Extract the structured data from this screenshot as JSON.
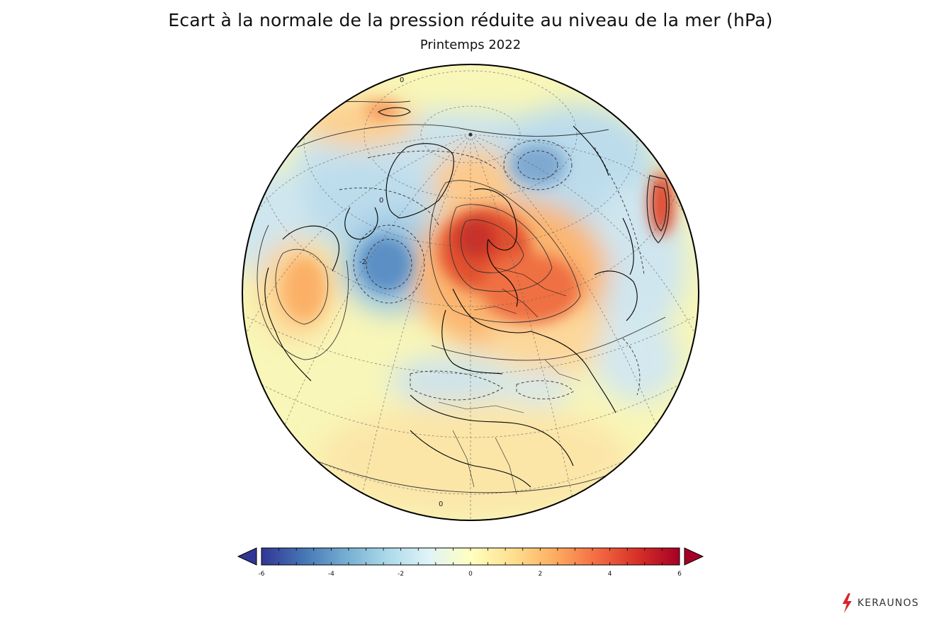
{
  "header": {
    "title": "Ecart à la normale de la pression réduite au niveau de la mer (hPa)",
    "subtitle": "Printemps 2022"
  },
  "map": {
    "projection": "orthographic",
    "contour_labels": [
      "0",
      "0",
      "-2",
      "0"
    ]
  },
  "colorbar": {
    "min": -6,
    "max": 6,
    "ticks": [
      "-6",
      "-4",
      "-2",
      "0",
      "2",
      "4",
      "6"
    ],
    "extend": "both",
    "colors": [
      "#313695",
      "#4575b4",
      "#74add1",
      "#abd9e9",
      "#e0f3f8",
      "#ffffbf",
      "#fee090",
      "#fdae61",
      "#f46d43",
      "#d73027",
      "#a50026"
    ]
  },
  "brand": {
    "name": "KERAUNOS",
    "icon": "lightning-bolt-icon",
    "color": "#d7262b"
  }
}
